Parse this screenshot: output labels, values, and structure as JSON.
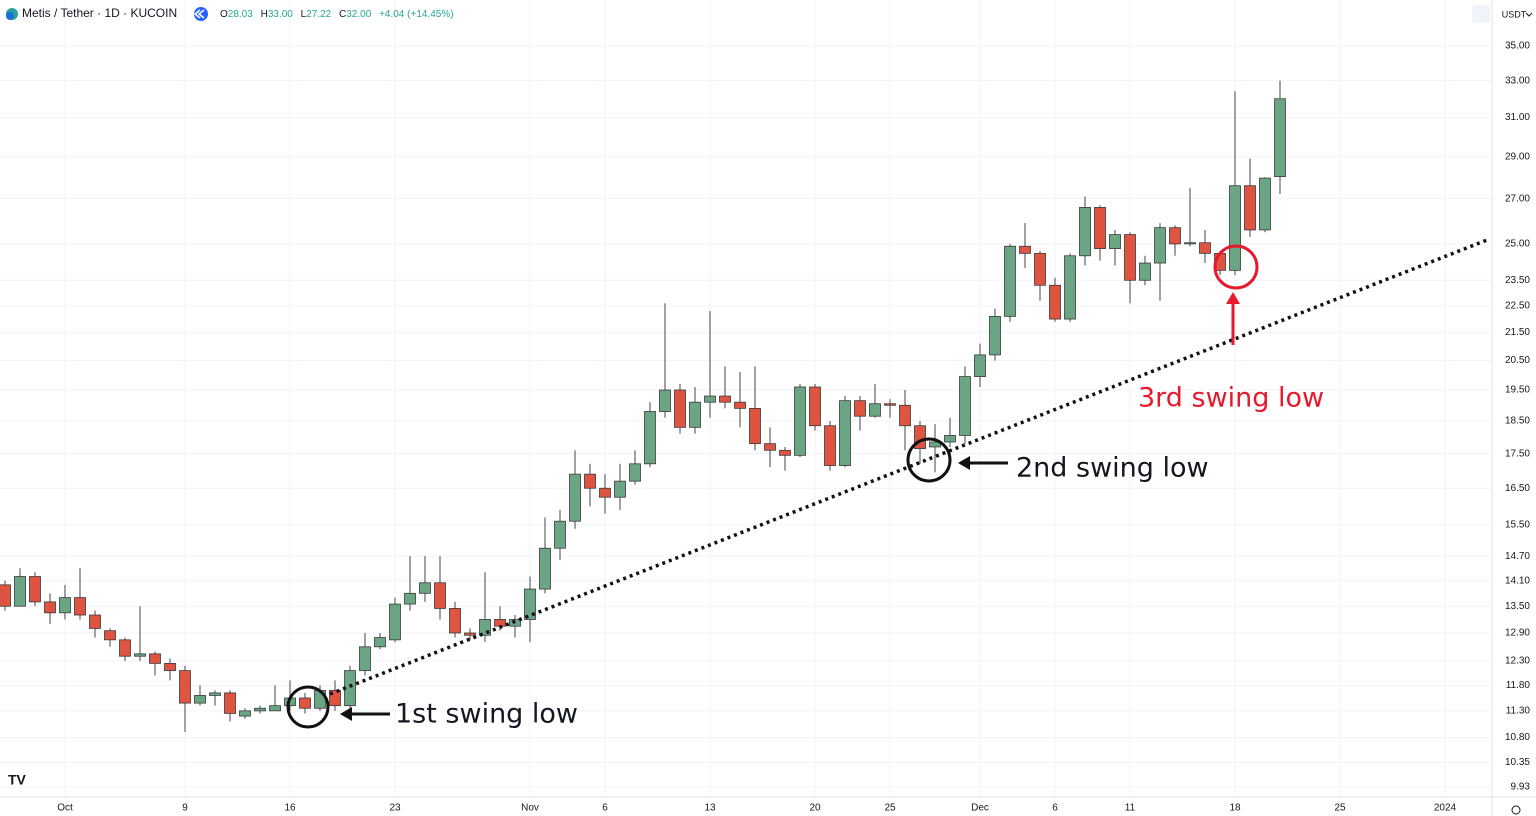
{
  "chart_data": {
    "type": "candlestick",
    "title": "Metis / Tether · 1D · KUCOIN",
    "ohlc": [
      [
        "O",
        "28.03"
      ],
      [
        "H",
        "33.00"
      ],
      [
        "L",
        "27.22"
      ],
      [
        "C",
        "32.00"
      ]
    ],
    "change": "+4.04 (+14.45%)",
    "currency": "USDT",
    "categories": [
      null,
      null,
      null,
      null,
      "Oct",
      null,
      null,
      null,
      null,
      null,
      null,
      null,
      "9",
      null,
      null,
      null,
      null,
      null,
      null,
      "16",
      null,
      null,
      null,
      null,
      null,
      null,
      "23",
      null,
      null,
      null,
      null,
      null,
      null,
      null,
      null,
      "Nov",
      null,
      null,
      null,
      null,
      "6",
      null,
      null,
      null,
      null,
      null,
      null,
      "13",
      null,
      null,
      null,
      null,
      null,
      null,
      "20",
      null,
      null,
      null,
      null,
      "25",
      null,
      null,
      null,
      null,
      null,
      "Dec",
      null,
      null,
      null,
      null,
      "6",
      null,
      null,
      null,
      null,
      "11",
      null,
      null,
      null,
      null,
      null,
      null,
      "18",
      null,
      null,
      null,
      null,
      null,
      null,
      "25",
      null,
      null,
      null,
      null,
      null,
      null,
      "2024"
    ],
    "open": [
      14.0,
      13.5,
      14.2,
      13.6,
      13.35,
      13.7,
      13.3,
      12.95,
      12.75,
      12.4,
      12.45,
      12.25,
      12.1,
      11.45,
      11.6,
      11.65,
      11.2,
      11.3,
      11.3,
      11.4,
      11.55,
      11.35,
      11.7,
      11.4,
      12.1,
      12.6,
      12.75,
      13.55,
      13.8,
      14.05,
      13.45,
      12.9,
      12.85,
      13.2,
      13.05,
      13.2,
      13.9,
      14.9,
      15.6,
      16.9,
      16.5,
      16.25,
      16.7,
      17.2,
      18.8,
      19.5,
      18.3,
      19.1,
      19.3,
      19.1,
      18.9,
      17.8,
      17.6,
      17.45,
      19.6,
      18.35,
      17.15,
      19.15,
      18.65,
      19.05,
      19.0,
      18.35,
      17.7,
      17.85,
      18.05,
      19.95,
      20.7,
      22.1,
      24.9,
      24.6,
      23.3,
      22.0,
      24.5,
      26.6,
      24.8,
      25.4,
      23.5,
      24.2,
      25.7,
      25.0,
      25.05,
      24.6,
      23.9,
      27.6,
      25.6,
      28.03,
      null,
      null,
      null,
      null,
      null,
      null,
      null,
      null,
      null,
      null,
      null
    ],
    "high": [
      14.1,
      14.4,
      14.3,
      13.8,
      14.0,
      14.4,
      13.4,
      13.0,
      12.8,
      13.5,
      12.5,
      12.35,
      12.2,
      11.8,
      11.7,
      11.7,
      11.35,
      11.4,
      11.8,
      11.9,
      11.65,
      11.8,
      11.9,
      12.2,
      12.9,
      12.9,
      13.7,
      14.7,
      14.7,
      14.7,
      13.6,
      13.0,
      14.3,
      13.5,
      13.3,
      14.2,
      15.7,
      15.9,
      17.6,
      17.2,
      16.9,
      17.2,
      17.6,
      19.1,
      22.6,
      19.7,
      19.6,
      22.3,
      20.3,
      20.1,
      20.3,
      18.3,
      17.7,
      19.7,
      19.7,
      18.5,
      19.3,
      19.3,
      19.7,
      19.2,
      19.5,
      18.5,
      18.4,
      18.6,
      20.3,
      21.1,
      22.4,
      25.0,
      25.9,
      24.7,
      23.6,
      24.6,
      27.1,
      26.7,
      25.6,
      25.5,
      24.5,
      25.9,
      25.8,
      27.5,
      25.6,
      24.7,
      32.4,
      28.9,
      28.0,
      33.0,
      null,
      null,
      null,
      null,
      null,
      null,
      null,
      null,
      null,
      null,
      null
    ],
    "low": [
      13.4,
      13.5,
      13.5,
      13.1,
      13.2,
      13.2,
      12.8,
      12.6,
      12.3,
      12.3,
      12.0,
      11.9,
      10.9,
      11.4,
      11.4,
      11.1,
      11.15,
      11.25,
      11.3,
      11.3,
      11.25,
      11.3,
      11.3,
      11.35,
      12.0,
      12.55,
      12.7,
      13.4,
      13.6,
      13.2,
      12.8,
      12.75,
      12.7,
      12.95,
      12.8,
      12.7,
      13.8,
      14.6,
      15.4,
      16.0,
      15.8,
      15.9,
      16.6,
      17.1,
      18.6,
      18.1,
      18.1,
      18.6,
      18.9,
      18.3,
      17.6,
      17.1,
      17.0,
      17.4,
      18.2,
      17.0,
      17.1,
      18.2,
      18.6,
      18.6,
      17.6,
      17.2,
      16.95,
      17.7,
      17.8,
      19.6,
      20.5,
      21.9,
      24.0,
      22.7,
      21.9,
      21.9,
      24.1,
      24.3,
      24.1,
      22.6,
      23.3,
      22.7,
      24.5,
      24.9,
      24.2,
      23.7,
      23.7,
      25.3,
      25.5,
      27.22,
      null,
      null,
      null,
      null,
      null,
      null,
      null,
      null,
      null,
      null,
      null
    ],
    "close": [
      13.5,
      14.2,
      13.6,
      13.35,
      13.7,
      13.3,
      13.0,
      12.75,
      12.4,
      12.45,
      12.25,
      12.1,
      11.45,
      11.6,
      11.65,
      11.25,
      11.3,
      11.35,
      11.4,
      11.55,
      11.35,
      11.7,
      11.4,
      12.1,
      12.6,
      12.8,
      13.55,
      13.8,
      14.05,
      13.45,
      12.9,
      12.85,
      13.2,
      13.05,
      13.2,
      13.9,
      14.9,
      15.6,
      16.9,
      16.5,
      16.25,
      16.7,
      17.2,
      18.8,
      19.5,
      18.3,
      19.1,
      19.3,
      19.1,
      18.9,
      17.8,
      17.6,
      17.45,
      19.6,
      18.35,
      17.15,
      19.15,
      18.65,
      19.05,
      19.0,
      18.35,
      17.65,
      17.85,
      18.05,
      19.95,
      20.7,
      22.1,
      24.9,
      24.6,
      23.3,
      22.0,
      24.5,
      26.6,
      24.8,
      25.4,
      23.5,
      24.2,
      25.7,
      25.0,
      25.05,
      24.6,
      23.9,
      27.6,
      25.6,
      27.96,
      32.0,
      null,
      null,
      null,
      null,
      null,
      null,
      null,
      null,
      null,
      null,
      null
    ],
    "up_color": "#6aa584",
    "down_color": "#df5440",
    "log_scale": true,
    "grid": true,
    "ylim": [
      9.76,
      37.85
    ],
    "yticks": [
      {
        "value": 9.93,
        "label": "9.93"
      },
      {
        "value": 10.35,
        "label": "10.35"
      },
      {
        "value": 10.8,
        "label": "10.80"
      },
      {
        "value": 11.3,
        "label": "11.30"
      },
      {
        "value": 11.8,
        "label": "11.80"
      },
      {
        "value": 12.3,
        "label": "12.30"
      },
      {
        "value": 12.9,
        "label": "12.90"
      },
      {
        "value": 13.5,
        "label": "13.50"
      },
      {
        "value": 14.1,
        "label": "14.10"
      },
      {
        "value": 14.7,
        "label": "14.70"
      },
      {
        "value": 15.5,
        "label": "15.50"
      },
      {
        "value": 16.5,
        "label": "16.50"
      },
      {
        "value": 17.5,
        "label": "17.50"
      },
      {
        "value": 18.5,
        "label": "18.50"
      },
      {
        "value": 19.5,
        "label": "19.50"
      },
      {
        "value": 20.5,
        "label": "20.50"
      },
      {
        "value": 21.5,
        "label": "21.50"
      },
      {
        "value": 22.5,
        "label": "22.50"
      },
      {
        "value": 23.5,
        "label": "23.50"
      },
      {
        "value": 25,
        "label": "25.00"
      },
      {
        "value": 27,
        "label": "27.00"
      },
      {
        "value": 29,
        "label": "29.00"
      },
      {
        "value": 31,
        "label": "31.00"
      },
      {
        "value": 33,
        "label": "33.00"
      },
      {
        "value": 35,
        "label": "35.00"
      }
    ],
    "annotations": [
      "1st swing low",
      "2nd swing low",
      "3rd swing low"
    ]
  }
}
